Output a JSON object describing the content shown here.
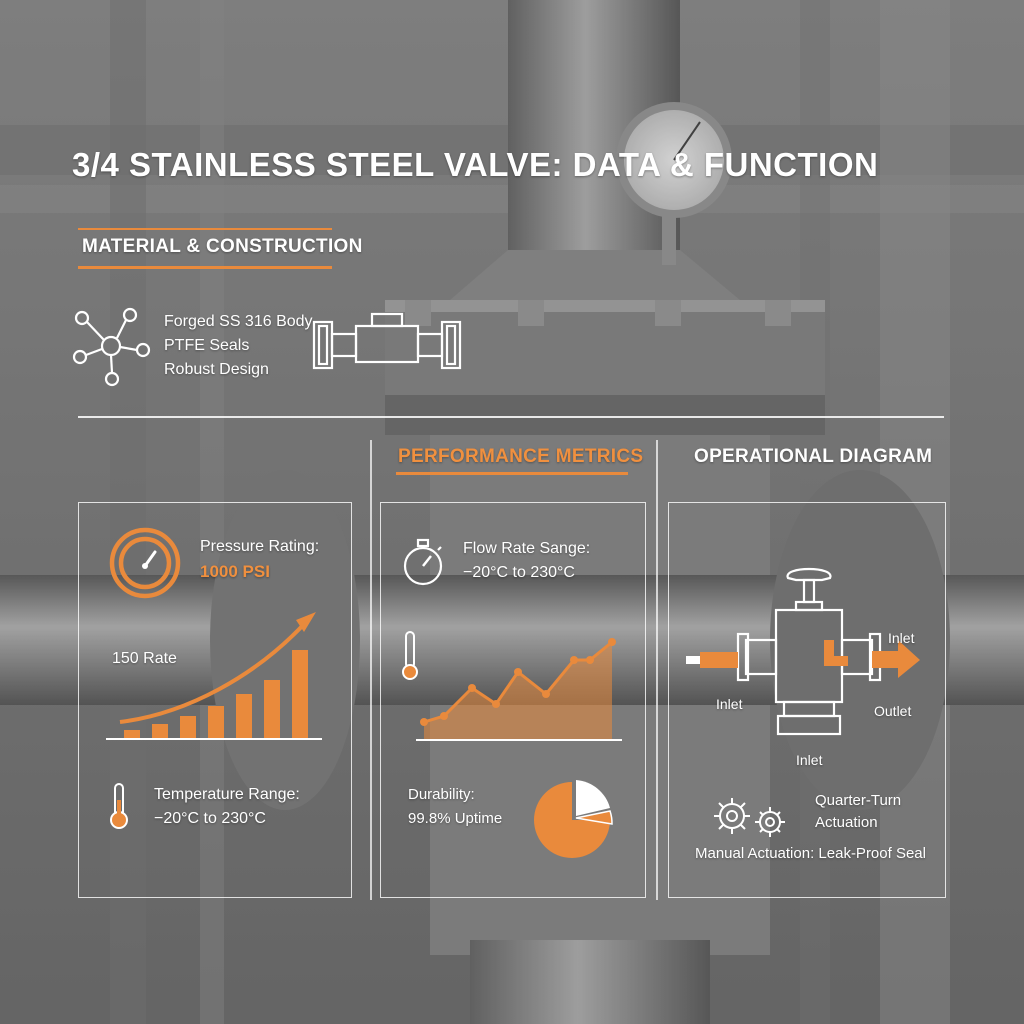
{
  "title": "3/4 STAINLESS STEEL VALVE: DATA & FUNCTION",
  "material": {
    "heading": "MATERIAL & CONSTRUCTION",
    "items": [
      "Forged SS 316 Body",
      "PTFE Seals",
      "Robust Design"
    ]
  },
  "performance": {
    "heading": "PERFORMANCE METRICS",
    "pressure_label": "Pressure Rating:",
    "pressure_value": "1000 PSI",
    "rate_label": "150 Rate",
    "temp_label": "Temperature Range:",
    "temp_value": "−20°C to 230°C",
    "flow_label": "Flow Rate Sange:",
    "flow_value": "−20°C to 230°C",
    "durability_label": "Durability:",
    "durability_value": "99.8% Uptime"
  },
  "diagram": {
    "heading": "OPERATIONAL DIAGRAM",
    "inlet_left": "Inlet",
    "inlet_top": "Inlet",
    "inlet_bottom": "Inlet",
    "outlet": "Outlet",
    "actuation_1": "Quarter-Turn",
    "actuation_2": "Actuation",
    "footer": "Manual Actuation: Leak-Proof Seal"
  },
  "colors": {
    "accent": "#e98a3c",
    "background": "#8a8a8a"
  },
  "icons": [
    "network-icon",
    "valve-icon",
    "gauge-icon",
    "thermometer-icon",
    "stopwatch-icon",
    "gears-icon"
  ]
}
